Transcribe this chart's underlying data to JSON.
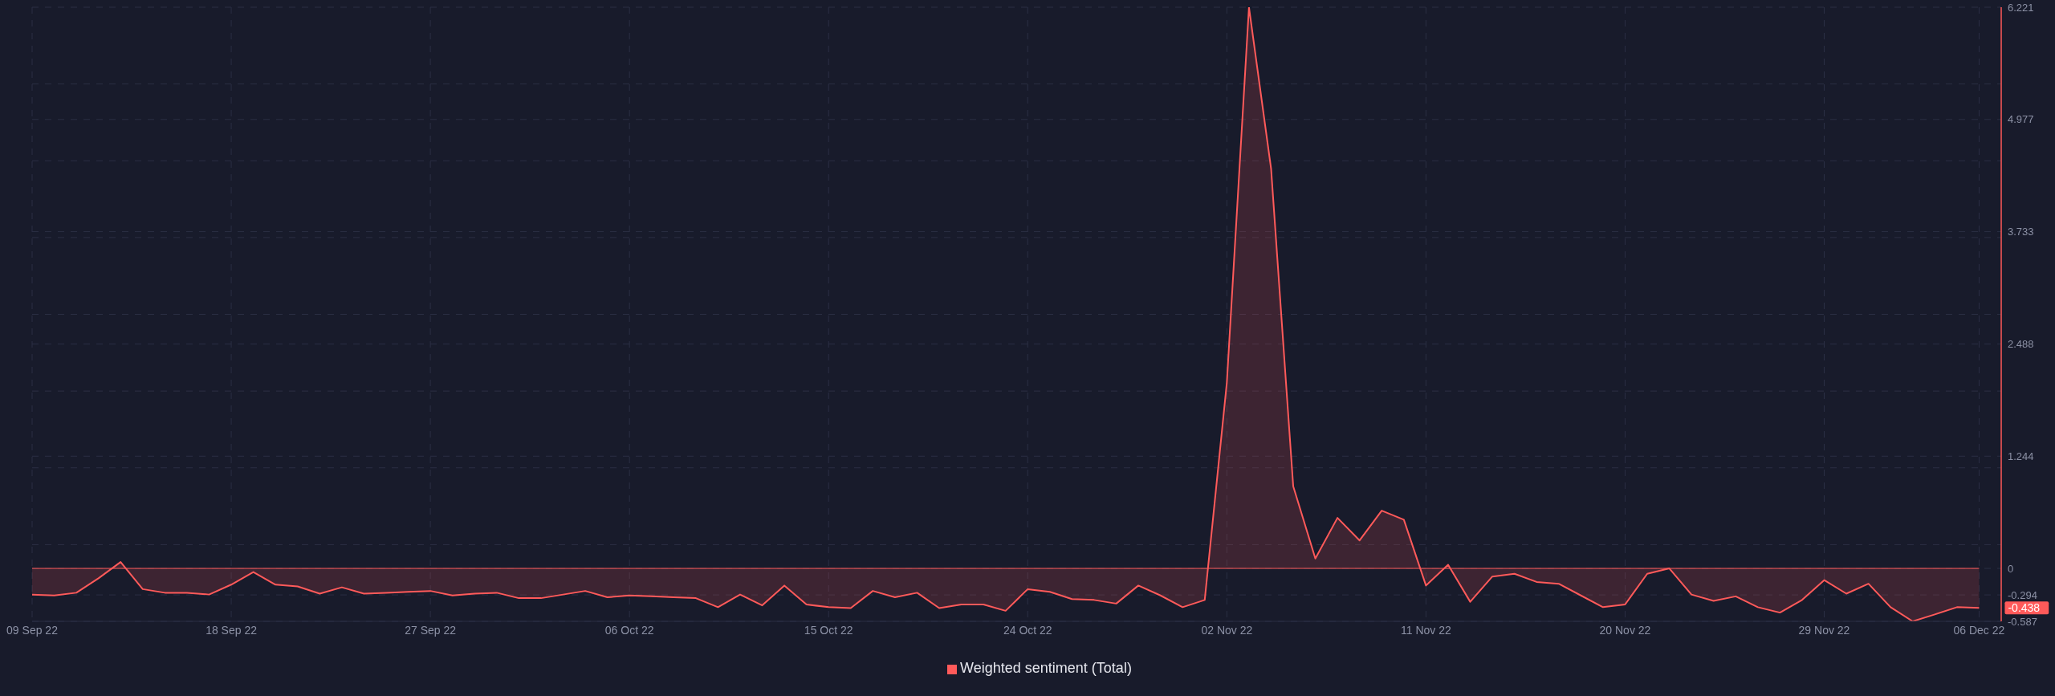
{
  "chart_data": {
    "type": "area",
    "x": [
      "--09-09",
      "--09-10",
      "--09-11",
      "--09-12",
      "--09-13",
      "--09-14",
      "--09-15",
      "--09-16",
      "--09-17",
      "--09-18",
      "--09-19",
      "--09-20",
      "--09-21",
      "--09-22",
      "--09-23",
      "--09-24",
      "--09-25",
      "--09-26",
      "--09-27",
      "--09-28",
      "--09-29",
      "--09-30",
      "--10-01",
      "--10-02",
      "--10-03",
      "--10-04",
      "--10-05",
      "--10-06",
      "--10-07",
      "--10-08",
      "--10-09",
      "--10-10",
      "--10-11",
      "--10-12",
      "--10-13",
      "--10-14",
      "--10-15",
      "--10-16",
      "--10-17",
      "--10-18",
      "--10-19",
      "--10-20",
      "--10-21",
      "--10-22",
      "--10-23",
      "--10-24",
      "--10-25",
      "--10-26",
      "--10-27",
      "--10-28",
      "--10-29",
      "--10-30",
      "--10-31",
      "--11-01",
      "--11-02",
      "--11-03",
      "--11-04",
      "--11-05",
      "--11-06",
      "--11-07",
      "--11-08",
      "--11-09",
      "--11-10",
      "--11-11",
      "--11-12",
      "--11-13",
      "--11-14",
      "--11-15",
      "--11-16",
      "--11-17",
      "--11-18",
      "--11-19",
      "--11-20",
      "--11-21",
      "--11-22",
      "--11-23",
      "--11-24",
      "--11-25",
      "--11-26",
      "--11-27",
      "--11-28",
      "--11-29",
      "--11-30",
      "--12-01",
      "--12-02",
      "--12-03",
      "--12-04",
      "--12-05",
      "--12-06"
    ],
    "series": [
      {
        "name": "Weighted sentiment (Total)",
        "color": "#ff5a5a",
        "values": [
          -0.29,
          -0.3,
          -0.27,
          -0.11,
          0.07,
          -0.23,
          -0.27,
          -0.27,
          -0.29,
          -0.18,
          -0.04,
          -0.18,
          -0.2,
          -0.28,
          -0.21,
          -0.28,
          -0.27,
          -0.26,
          -0.25,
          -0.3,
          -0.28,
          -0.27,
          -0.33,
          -0.33,
          -0.29,
          -0.25,
          -0.32,
          -0.3,
          -0.31,
          -0.32,
          -0.33,
          -0.43,
          -0.29,
          -0.41,
          -0.19,
          -0.4,
          -0.43,
          -0.44,
          -0.25,
          -0.32,
          -0.27,
          -0.44,
          -0.4,
          -0.4,
          -0.47,
          -0.23,
          -0.26,
          -0.34,
          -0.35,
          -0.39,
          -0.19,
          -0.3,
          -0.43,
          -0.35,
          2.06,
          6.221,
          4.43,
          0.91,
          0.11,
          0.56,
          0.31,
          0.64,
          0.54,
          -0.19,
          0.04,
          -0.37,
          -0.09,
          -0.06,
          -0.15,
          -0.17,
          -0.3,
          -0.43,
          -0.4,
          -0.06,
          0,
          -0.29,
          -0.36,
          -0.31,
          -0.43,
          -0.49,
          -0.35,
          -0.13,
          -0.28,
          -0.17,
          -0.43,
          -0.587,
          -0.51,
          -0.43,
          -0.438
        ]
      }
    ],
    "xlim": [
      "--09-09",
      "--12-07"
    ],
    "xticks": [
      {
        "value": "--09-09",
        "label": "09 Sep 22"
      },
      {
        "value": "--09-18",
        "label": "18 Sep 22"
      },
      {
        "value": "--09-27",
        "label": "27 Sep 22"
      },
      {
        "value": "--10-06",
        "label": "06 Oct 22"
      },
      {
        "value": "--10-15",
        "label": "15 Oct 22"
      },
      {
        "value": "--10-24",
        "label": "24 Oct 22"
      },
      {
        "value": "--11-02",
        "label": "02 Nov 22"
      },
      {
        "value": "--11-11",
        "label": "11 Nov 22"
      },
      {
        "value": "--11-20",
        "label": "20 Nov 22"
      },
      {
        "value": "--11-29",
        "label": "29 Nov 22"
      },
      {
        "value": "--12-06",
        "label": "06 Dec 22"
      }
    ],
    "ylim": [
      -0.587,
      6.221
    ],
    "yticks": [
      -0.587,
      -0.294,
      0,
      {
        "value": 0.264,
        "label": null
      },
      {
        "value": 1.115,
        "label": null
      },
      1.244,
      {
        "value": 1.966,
        "label": null
      },
      2.488,
      {
        "value": 2.817,
        "label": null
      },
      {
        "value": 3.668,
        "label": null
      },
      3.733,
      {
        "value": 4.519,
        "label": null
      },
      4.977,
      {
        "value": 5.37,
        "label": null
      },
      6.221
    ],
    "ref_lines": [
      {
        "axis": "y",
        "value": 0,
        "color": "#ff5a5a"
      }
    ],
    "annotations": [
      {
        "text": "-0.438",
        "x": "--12-06",
        "y": -0.438
      }
    ],
    "grid": true,
    "legend": "bottom"
  }
}
